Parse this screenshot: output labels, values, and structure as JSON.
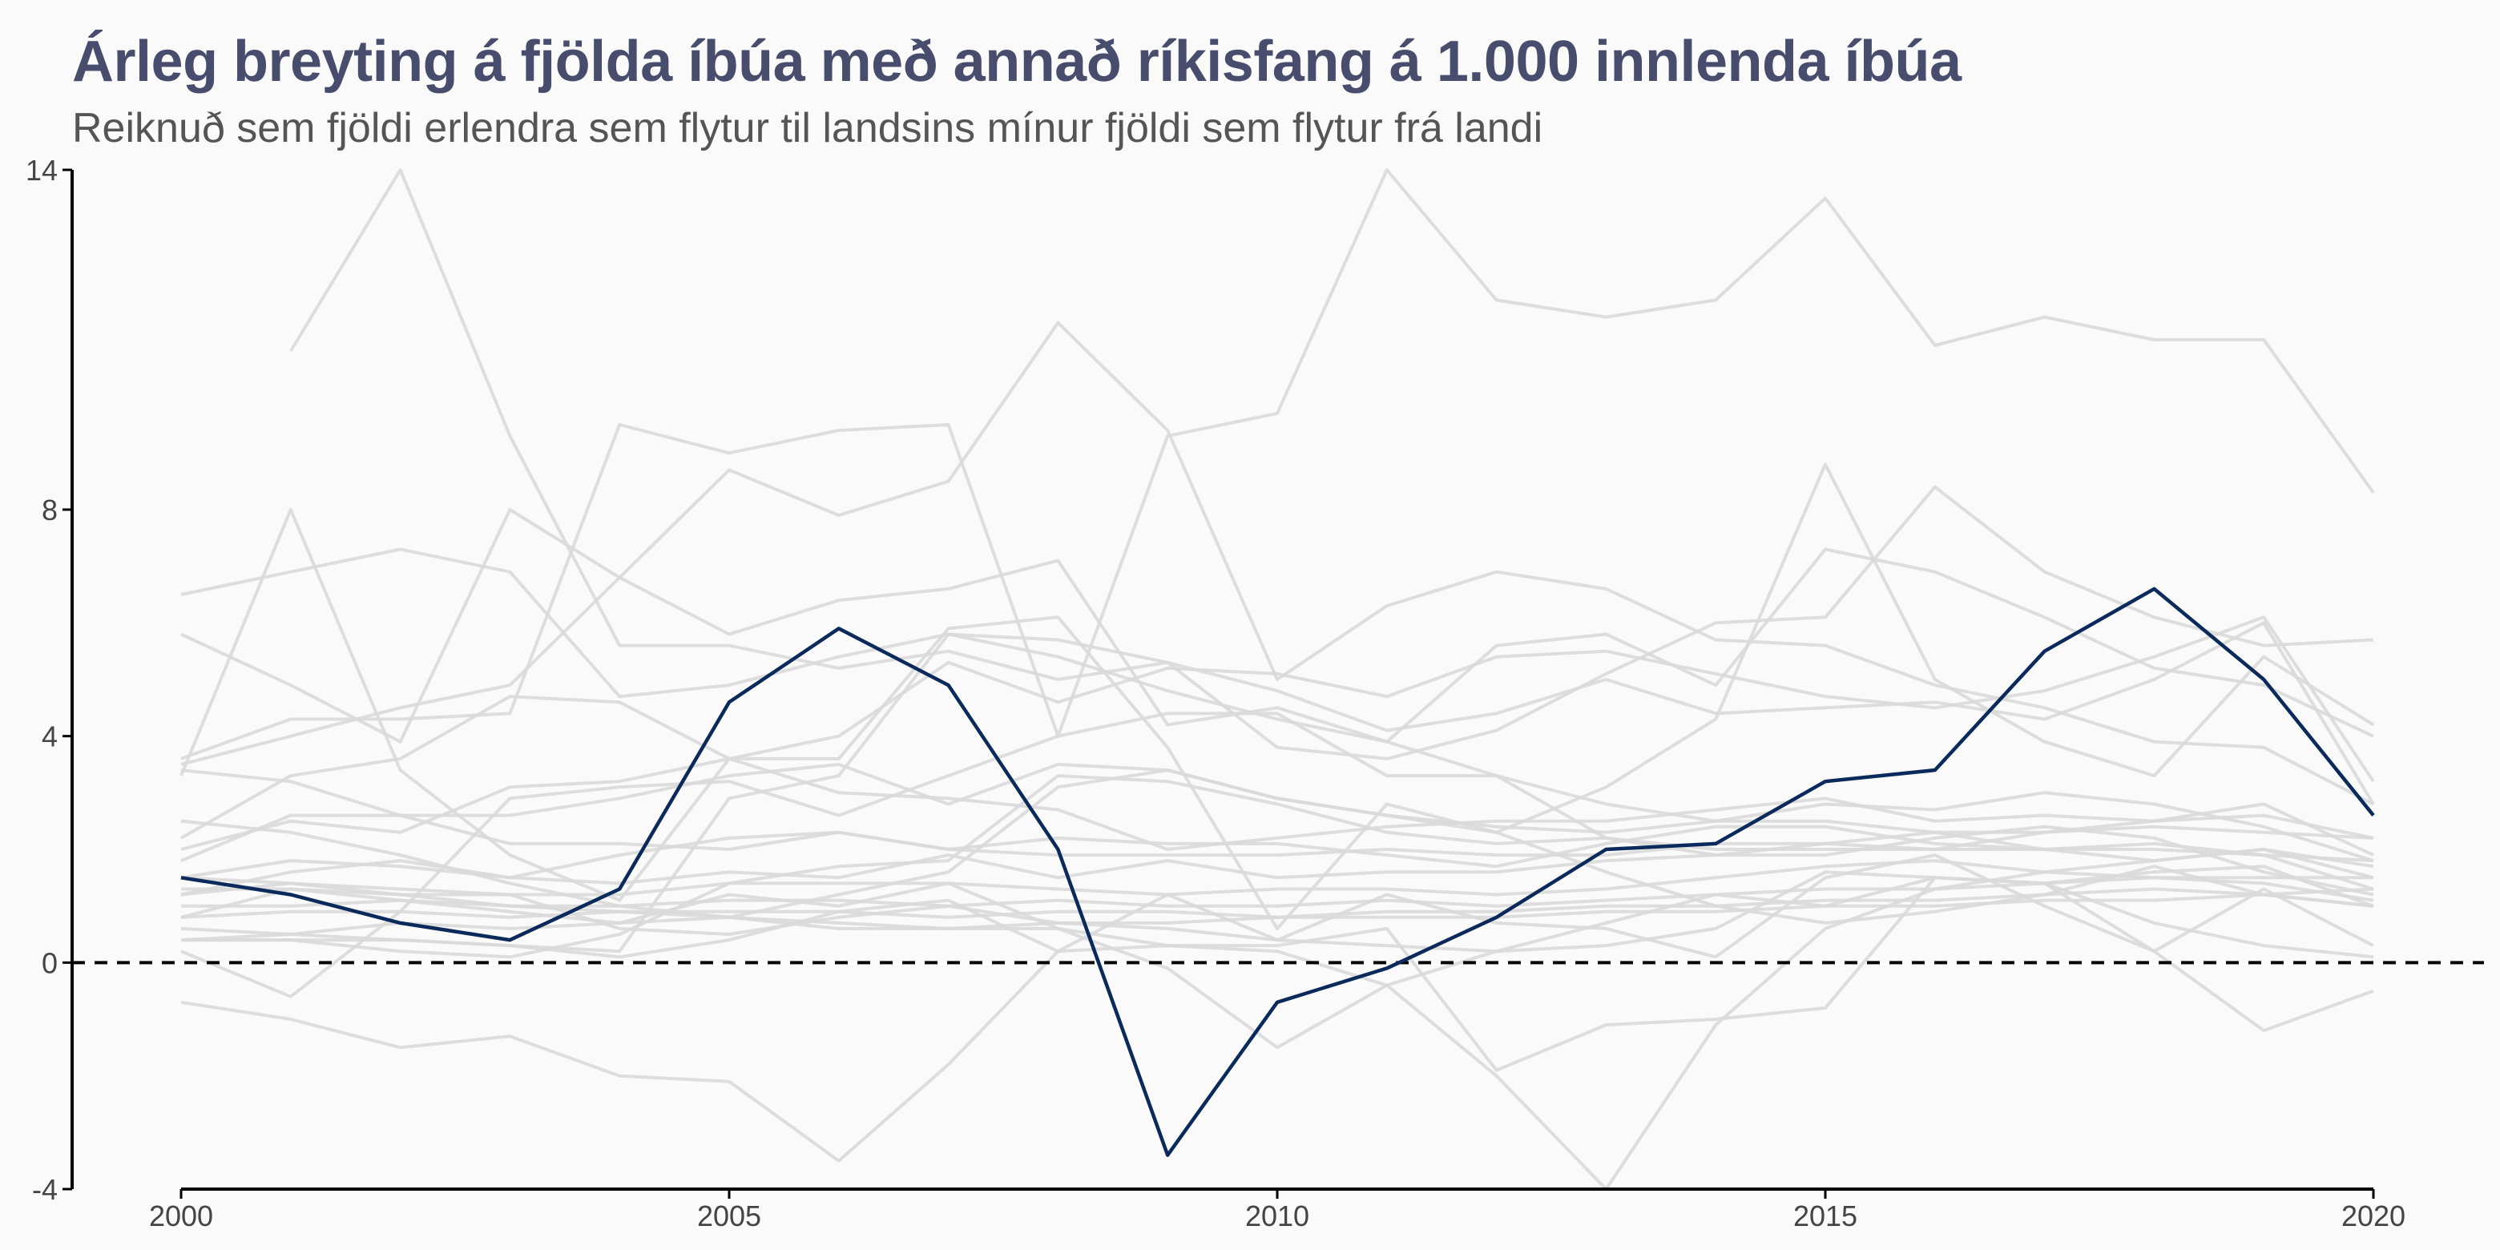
{
  "title": "Árleg breyting á fjölda íbúa með annað ríkisfang á 1.000 innlenda íbúa",
  "subtitle": "Reiknuð sem fjöldi erlendra sem flytur til landsins mínur fjöldi sem flytur frá landi",
  "colors": {
    "background": "#fafafa",
    "title": "#484d6d",
    "highlight": "#0b2a5c",
    "other_series": "#d9d9d9",
    "zero_line": "#000000"
  },
  "chart_data": {
    "type": "line",
    "xlim": [
      2000,
      2020
    ],
    "ylim": [
      -4,
      14
    ],
    "x_ticks": [
      2000,
      2005,
      2010,
      2015,
      2020
    ],
    "y_ticks": [
      -4,
      0,
      4,
      8,
      14
    ],
    "grid": false,
    "reference_line": {
      "y": 0,
      "style": "dashed"
    },
    "x": [
      2000,
      2001,
      2002,
      2003,
      2004,
      2005,
      2006,
      2007,
      2008,
      2009,
      2010,
      2011,
      2012,
      2013,
      2014,
      2015,
      2016,
      2017,
      2018,
      2019,
      2020
    ],
    "highlight": {
      "values": [
        1.5,
        1.2,
        0.7,
        0.4,
        1.3,
        4.6,
        5.9,
        4.9,
        2.0,
        -3.4,
        -0.7,
        -0.1,
        0.8,
        2.0,
        2.1,
        3.2,
        3.4,
        5.5,
        6.6,
        5.0,
        2.6
      ]
    },
    "other_series": [
      {
        "values": [
          null,
          10.8,
          14.0,
          9.3,
          5.6,
          5.6,
          5.2,
          5.5,
          5.0,
          5.3,
          4.8,
          4.1,
          4.4,
          5.0,
          4.4,
          4.5,
          4.6,
          4.3,
          5.0,
          6.0,
          2.8
        ]
      },
      {
        "values": [
          3.6,
          4.3,
          4.3,
          4.4,
          9.5,
          9.0,
          9.4,
          9.5,
          4.0,
          9.3,
          9.7,
          14.0,
          11.7,
          11.4,
          11.7,
          13.5,
          10.9,
          11.4,
          11.0,
          11.0,
          8.3
        ]
      },
      {
        "values": [
          3.5,
          4.0,
          4.5,
          4.9,
          6.8,
          8.7,
          7.9,
          8.5,
          11.3,
          9.4,
          5.0,
          6.3,
          6.9,
          6.6,
          5.7,
          5.6,
          4.9,
          4.5,
          3.9,
          3.8,
          2.8
        ]
      },
      {
        "values": [
          5.8,
          4.9,
          3.9,
          8.0,
          6.8,
          5.8,
          6.4,
          6.6,
          7.1,
          4.2,
          4.5,
          3.9,
          5.6,
          5.8,
          4.9,
          7.3,
          6.9,
          6.1,
          5.2,
          4.9,
          4.0
        ]
      },
      {
        "values": [
          6.5,
          6.9,
          7.3,
          6.9,
          4.7,
          4.9,
          5.4,
          5.8,
          5.7,
          5.3,
          3.8,
          3.6,
          4.1,
          5.1,
          6.0,
          6.1,
          8.4,
          6.9,
          6.1,
          5.6,
          5.7
        ]
      },
      {
        "values": [
          3.3,
          8.0,
          3.4,
          1.9,
          1.1,
          3.6,
          3.6,
          5.9,
          6.1,
          3.8,
          0.6,
          2.8,
          2.3,
          3.1,
          4.3,
          8.8,
          5.0,
          3.9,
          3.3,
          5.4,
          4.2
        ]
      },
      {
        "values": [
          2.2,
          3.3,
          3.6,
          4.7,
          4.6,
          3.6,
          4.0,
          5.3,
          4.6,
          5.2,
          5.1,
          4.7,
          5.4,
          5.5,
          5.1,
          4.7,
          4.5,
          4.8,
          5.4,
          6.1,
          3.2
        ]
      },
      {
        "values": [
          1.8,
          2.6,
          2.6,
          2.6,
          2.9,
          3.3,
          3.5,
          2.8,
          3.5,
          3.4,
          2.9,
          2.6,
          2.4,
          2.3,
          2.5,
          2.8,
          2.7,
          3.0,
          2.8,
          2.4,
          1.8
        ]
      },
      {
        "values": [
          3.4,
          3.2,
          2.6,
          2.1,
          2.1,
          2.0,
          2.3,
          2.0,
          1.9,
          1.9,
          1.9,
          2.0,
          1.9,
          1.9,
          2.1,
          2.1,
          2.3,
          2.3,
          2.4,
          2.3,
          2.2
        ]
      },
      {
        "values": [
          2.0,
          2.5,
          2.3,
          3.1,
          3.2,
          3.6,
          3.0,
          2.9,
          2.7,
          2.0,
          2.2,
          2.4,
          2.5,
          2.5,
          2.7,
          2.9,
          2.5,
          2.6,
          2.5,
          2.6,
          2.2
        ]
      },
      {
        "values": [
          1.2,
          1.6,
          1.8,
          1.5,
          1.9,
          2.2,
          2.3,
          2.0,
          2.2,
          2.1,
          2.1,
          1.9,
          1.7,
          2.1,
          2.4,
          2.4,
          2.1,
          2.0,
          2.1,
          1.9,
          1.8
        ]
      },
      {
        "values": [
          1.5,
          1.8,
          1.7,
          1.5,
          1.4,
          1.6,
          1.5,
          1.9,
          1.5,
          1.8,
          1.5,
          1.6,
          1.6,
          1.8,
          1.9,
          2.1,
          2.0,
          2.3,
          2.5,
          2.8,
          1.9
        ]
      },
      {
        "values": [
          1.2,
          1.4,
          1.2,
          1.2,
          1.2,
          1.4,
          1.4,
          1.4,
          1.3,
          1.2,
          1.3,
          1.3,
          1.2,
          1.3,
          1.5,
          1.7,
          1.8,
          1.6,
          1.8,
          2.0,
          1.7
        ]
      },
      {
        "values": [
          1.0,
          1.0,
          1.1,
          1.0,
          1.0,
          1.1,
          1.1,
          1.0,
          1.1,
          1.0,
          1.0,
          1.1,
          1.0,
          1.1,
          1.2,
          1.3,
          1.3,
          1.4,
          1.5,
          1.5,
          1.5
        ]
      },
      {
        "values": [
          0.8,
          0.9,
          0.9,
          0.8,
          0.9,
          0.9,
          0.9,
          0.8,
          0.9,
          0.9,
          0.8,
          0.9,
          0.9,
          1.0,
          1.0,
          1.1,
          1.1,
          1.2,
          1.3,
          1.2,
          1.3
        ]
      },
      {
        "values": [
          0.4,
          0.5,
          0.7,
          0.6,
          0.7,
          0.8,
          0.7,
          0.6,
          0.7,
          0.7,
          0.8,
          0.8,
          0.8,
          0.9,
          0.9,
          1.0,
          1.0,
          1.1,
          1.1,
          1.2,
          1.0
        ]
      },
      {
        "values": [
          0.2,
          -0.6,
          0.9,
          2.9,
          3.1,
          3.2,
          2.6,
          3.3,
          4.0,
          4.4,
          4.4,
          3.3,
          3.3,
          2.2,
          1.9,
          1.9,
          2.2,
          2.4,
          2.2,
          1.6,
          1.2
        ]
      },
      {
        "values": [
          0.4,
          0.4,
          0.4,
          0.3,
          0.2,
          2.9,
          3.3,
          5.8,
          5.4,
          4.8,
          4.3,
          3.9,
          3.3,
          2.8,
          2.5,
          2.5,
          2.3,
          2.0,
          1.8,
          2.0,
          1.5
        ]
      },
      {
        "values": [
          0.4,
          0.4,
          0.2,
          0.1,
          0.5,
          1.4,
          1.7,
          1.8,
          3.3,
          3.2,
          2.8,
          2.3,
          2.1,
          2.2,
          2.0,
          2.0,
          2.0,
          2.0,
          2.0,
          1.9,
          1.3
        ]
      },
      {
        "values": [
          1.5,
          1.4,
          1.3,
          1.2,
          0.6,
          0.5,
          0.8,
          1.0,
          0.7,
          0.6,
          0.4,
          0.3,
          0.2,
          0.3,
          0.6,
          1.6,
          1.5,
          1.4,
          1.6,
          1.7,
          1.0
        ]
      },
      {
        "values": [
          0.6,
          0.5,
          0.4,
          0.3,
          0.1,
          0.4,
          0.9,
          1.1,
          0.2,
          1.2,
          0.4,
          1.2,
          0.7,
          0.6,
          0.1,
          1.5,
          1.9,
          1.0,
          0.2,
          1.3,
          0.3
        ]
      },
      {
        "values": [
          1.3,
          1.3,
          1.2,
          1.0,
          0.9,
          0.8,
          0.6,
          0.6,
          0.6,
          -0.1,
          -1.5,
          -0.4,
          0.2,
          0.7,
          1.2,
          1.0,
          1.5,
          1.4,
          0.7,
          0.3,
          0.1
        ]
      },
      {
        "values": [
          0.8,
          1.3,
          1.1,
          0.9,
          0.7,
          1.2,
          1.0,
          1.4,
          0.6,
          0.3,
          0.2,
          -0.4,
          -2.0,
          -4.0,
          -1.1,
          0.6,
          1.3,
          1.6,
          1.5,
          1.4,
          1.1
        ]
      },
      {
        "values": [
          -0.7,
          -1.0,
          -1.5,
          -1.3,
          -2.0,
          -2.1,
          -3.5,
          -1.8,
          0.2,
          0.3,
          0.3,
          0.6,
          -1.9,
          -1.1,
          -1.0,
          -0.8,
          1.5,
          1.4,
          0.2,
          -1.2,
          -0.5
        ]
      },
      {
        "values": [
          2.5,
          2.3,
          1.9,
          1.4,
          1.0,
          0.8,
          1.2,
          1.6,
          3.1,
          3.4,
          2.9,
          2.6,
          2.3,
          1.6,
          1.0,
          0.7,
          0.9,
          1.2,
          1.7,
          1.2,
          1.0
        ]
      }
    ]
  }
}
